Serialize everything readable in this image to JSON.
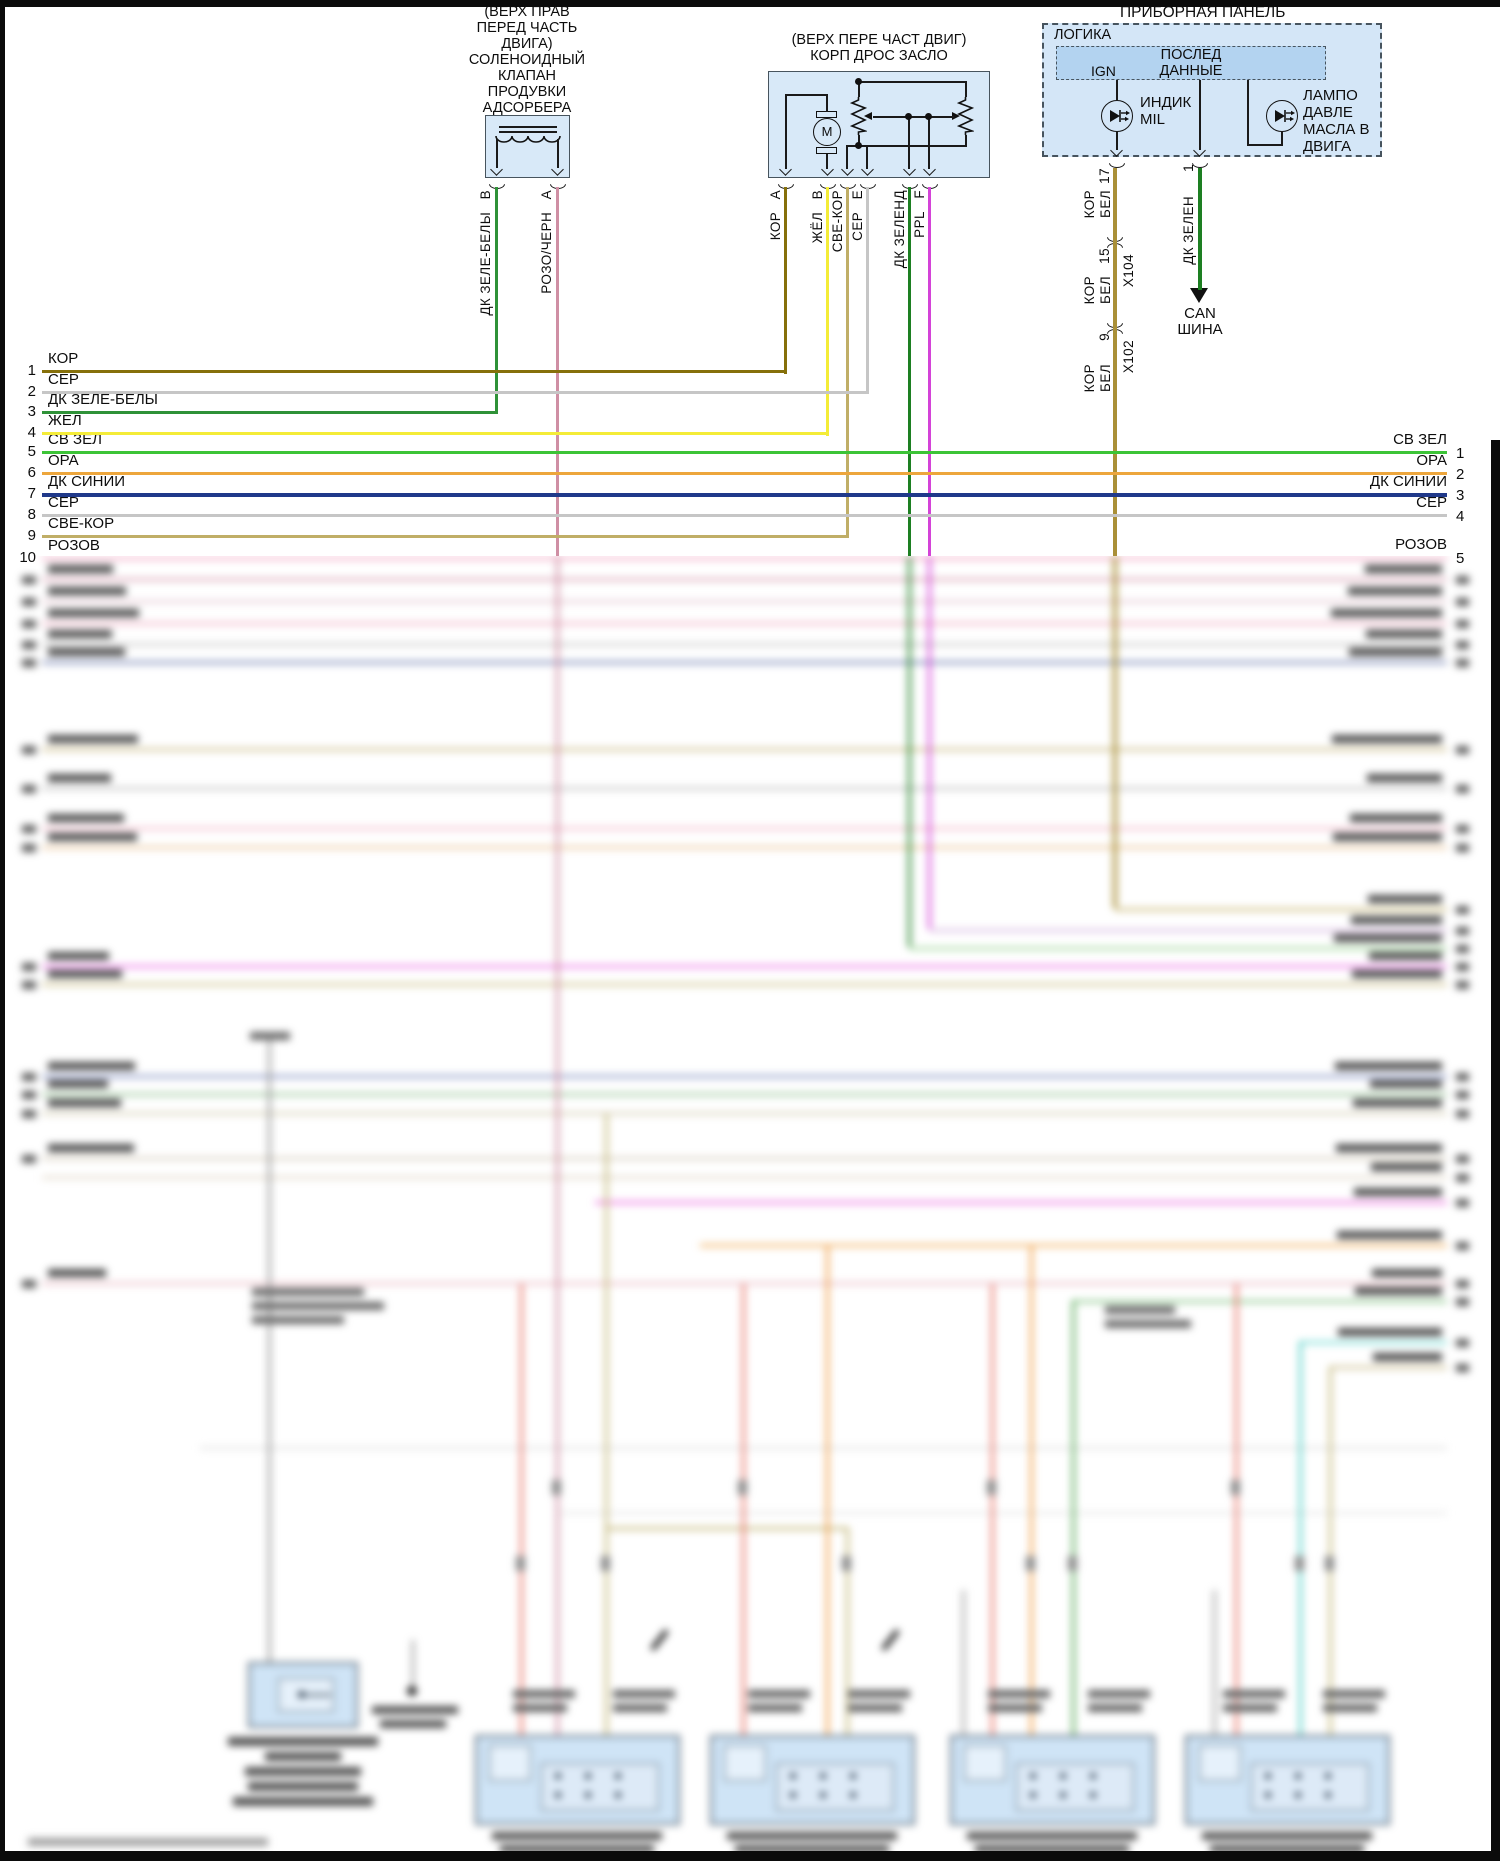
{
  "colors": {
    "kor": "#86700a",
    "ser": "#c6c6c6",
    "dk_zele_bely": "#2f9238",
    "zhel": "#f4ec38",
    "sv_zel": "#3cc437",
    "ora": "#eda63c",
    "dk_siniy": "#20398a",
    "sve_kor": "#c0ae67",
    "rozov": "#f2abc6",
    "rozo_chern": "#cf8fa4",
    "kor_bel": "#aa9038",
    "dk_zelen": "#1d7f22",
    "ppl": "#d443d8",
    "box_fill": "#d8e9f8",
    "panel_fill": "#d4e6f7",
    "inner_fill": "#b3d3f0"
  },
  "solenoid": {
    "location_lines": [
      "(ВЕРХ ПРАВ",
      "ПЕРЕД ЧАСТЬ",
      "ДВИГА)"
    ],
    "name_lines": [
      "СОЛЕНОИДНЫЙ",
      "КЛАПАН",
      "ПРОДУВКИ",
      "АДСОРБЕРА"
    ],
    "pin_b_label": "ДК ЗЕЛЕ-БЕЛЫ   B",
    "pin_a_label": "РОЗО/ЧЕРН   A"
  },
  "throttle": {
    "title_line1": "(ВЕРХ ПЕРЕ ЧАСТ ДВИГ)",
    "title_line2": "КОРП ДРОС ЗАСЛО",
    "motor": "M",
    "pin_labels": [
      "КОР   A",
      "ЖЁЛ   B",
      "СВЕ-КОР",
      "СЕР   E",
      "ДК ЗЕЛЕНД",
      "PPL   F"
    ]
  },
  "panel": {
    "title": "ПРИБОРНАЯ ПАНЕЛЬ",
    "logic": "ЛОГИКА",
    "serial_line1": "ПОСЛЕД",
    "serial_line2": "ДАННЫЕ",
    "ign": "IGN",
    "mil_line1": "ИНДИК",
    "mil_line2": "MIL",
    "oil_lines": [
      "ЛАМПО",
      "ДАВЛЕ",
      "МАСЛА В",
      "ДВИГА"
    ],
    "pin_17": "17",
    "pin_1": "1"
  },
  "harness": {
    "kor": "КОР",
    "bel": "БЕЛ",
    "x104": "X104",
    "x104_pin": "15",
    "x102": "X102",
    "x102_pin": "9",
    "dk_zelen_label": "ДК ЗЕЛЕН",
    "can_line1": "CAN",
    "can_line2": "ШИНА"
  },
  "rows_left": [
    {
      "n": "1",
      "label": "КОР"
    },
    {
      "n": "2",
      "label": "СЕР"
    },
    {
      "n": "3",
      "label": "ДК ЗЕЛЕ-БЕЛЫ"
    },
    {
      "n": "4",
      "label": "ЖЁЛ"
    },
    {
      "n": "5",
      "label": "СВ ЗЕЛ"
    },
    {
      "n": "6",
      "label": "ОРА"
    },
    {
      "n": "7",
      "label": "ДК СИНИЙ"
    },
    {
      "n": "8",
      "label": "СЕР"
    },
    {
      "n": "9",
      "label": "СВЕ-КОР"
    },
    {
      "n": "10",
      "label": "РОЗОВ"
    }
  ],
  "rows_right": [
    {
      "n": "1",
      "label": "СВ ЗЕЛ"
    },
    {
      "n": "2",
      "label": "ОРА"
    },
    {
      "n": "3",
      "label": "ДК СИНИЙ"
    },
    {
      "n": "4",
      "label": "СЕР"
    },
    {
      "n": "5",
      "label": "РОЗОВ"
    }
  ]
}
